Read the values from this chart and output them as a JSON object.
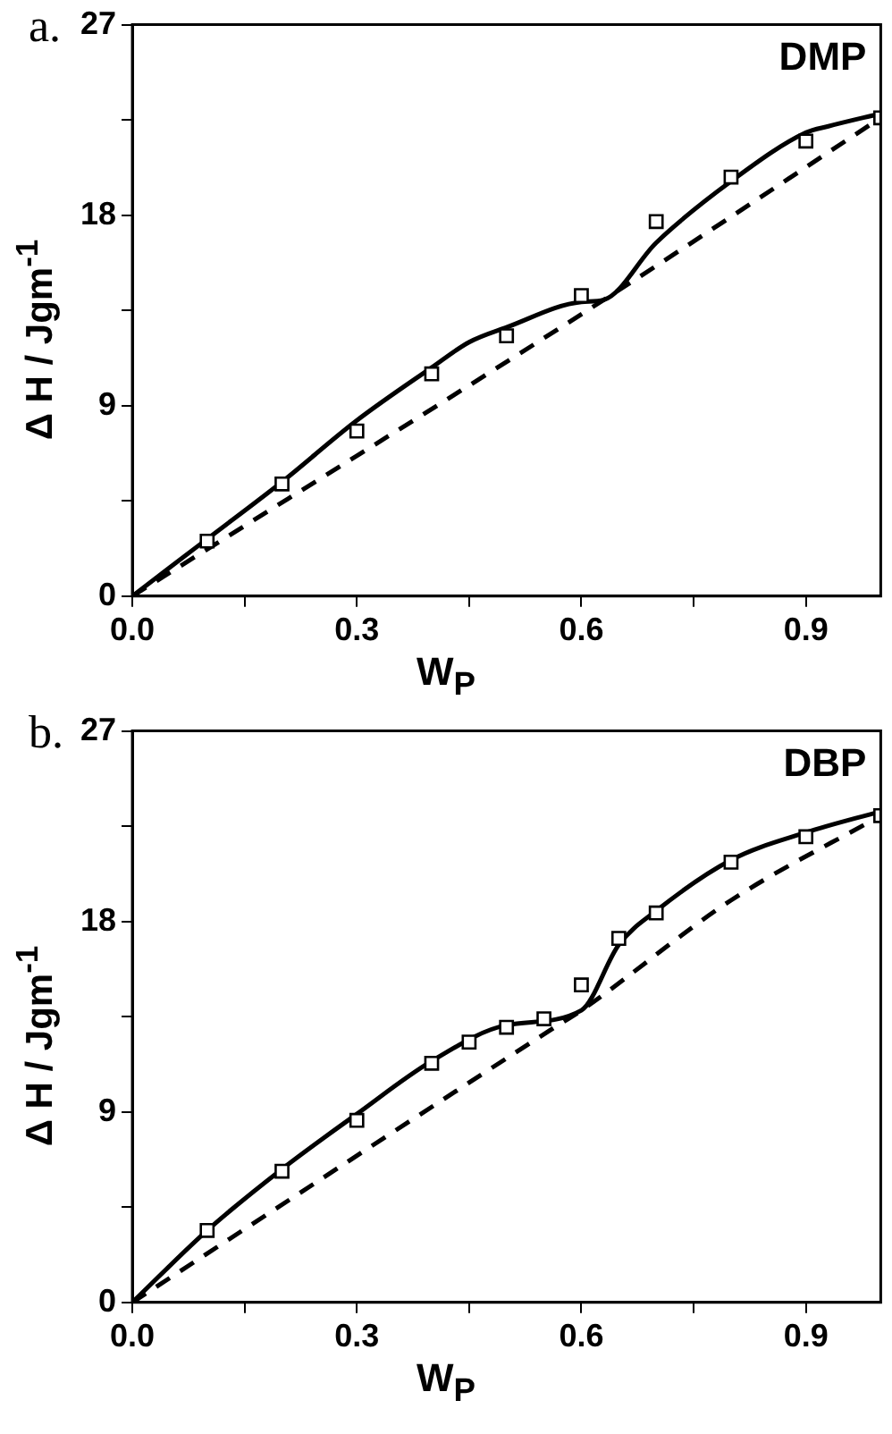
{
  "chart_data": [
    {
      "type": "scatter",
      "xlabel": "W$_{P}$",
      "ylabel": "Δ H / Jgm$^{-1}$",
      "annotations": [
        "a.",
        "DMP"
      ],
      "legend": false,
      "grid": false,
      "xlim": [
        0,
        1.0
      ],
      "xticks": [
        {
          "value": 0,
          "label": "0.0"
        },
        {
          "value": 0.15,
          "label": null
        },
        0.3,
        {
          "value": 0.45,
          "label": null
        },
        0.6,
        {
          "value": 0.75,
          "label": null
        },
        0.9
      ],
      "ylim": [
        0,
        27
      ],
      "yticks": [
        0,
        {
          "value": 4.5,
          "label": null
        },
        9,
        {
          "value": 13.5,
          "label": null
        },
        18,
        {
          "value": 22.5,
          "label": null
        },
        27
      ],
      "series": [
        {
          "marker": "square",
          "color": "#000000",
          "x": [
            0.1,
            0.2,
            0.3,
            0.4,
            0.5,
            0.6,
            0.7,
            0.8,
            0.9,
            1.0
          ],
          "values": [
            2.6,
            5.3,
            7.8,
            10.5,
            12.3,
            14.2,
            17.7,
            19.8,
            21.5,
            22.6
          ]
        },
        {
          "type": "line",
          "line_style": "solid",
          "color": "#000000",
          "x": [
            0,
            0.1,
            0.2,
            0.3,
            0.4,
            0.45,
            0.5,
            0.6,
            0.63,
            0.7,
            0.8,
            0.9,
            0.93,
            1.0
          ],
          "values": [
            0,
            2.7,
            5.4,
            8.3,
            10.8,
            12.0,
            12.7,
            13.9,
            14.0,
            16.7,
            19.6,
            21.9,
            22.2,
            22.8
          ]
        },
        {
          "type": "line",
          "line_style": "dashed",
          "color": "#000000",
          "x": [
            0,
            0.63,
            1.0
          ],
          "values": [
            0,
            14.0,
            22.6
          ]
        }
      ]
    },
    {
      "type": "scatter",
      "xlabel": "W$_{P}$",
      "ylabel": "Δ H / Jgm$^{-1}$",
      "annotations": [
        "b.",
        "DBP"
      ],
      "legend": false,
      "grid": false,
      "xlim": [
        0,
        1.0
      ],
      "xticks": [
        {
          "value": 0,
          "label": "0.0"
        },
        {
          "value": 0.15,
          "label": null
        },
        0.3,
        {
          "value": 0.45,
          "label": null
        },
        0.6,
        {
          "value": 0.75,
          "label": null
        },
        0.9
      ],
      "ylim": [
        0,
        27
      ],
      "yticks": [
        0,
        {
          "value": 4.5,
          "label": null
        },
        9,
        {
          "value": 13.5,
          "label": null
        },
        18,
        {
          "value": 22.5,
          "label": null
        },
        27
      ],
      "series": [
        {
          "marker": "square",
          "color": "#000000",
          "x": [
            0.1,
            0.2,
            0.3,
            0.4,
            0.45,
            0.5,
            0.55,
            0.6,
            0.65,
            0.7,
            0.8,
            0.9,
            1.0
          ],
          "values": [
            3.4,
            6.2,
            8.6,
            11.3,
            12.3,
            13.0,
            13.4,
            15.0,
            17.2,
            18.4,
            20.8,
            22.0,
            23.0
          ]
        },
        {
          "type": "line",
          "line_style": "solid",
          "color": "#000000",
          "x": [
            0,
            0.1,
            0.2,
            0.3,
            0.4,
            0.5,
            0.6,
            0.65,
            0.7,
            0.8,
            0.9,
            1.0
          ],
          "values": [
            0,
            3.4,
            6.3,
            8.9,
            11.4,
            13.1,
            13.8,
            16.9,
            18.5,
            20.9,
            22.2,
            23.2
          ]
        },
        {
          "type": "line",
          "line_style": "dashed",
          "color": "#000000",
          "x": [
            0,
            0.56,
            0.6,
            0.8,
            1.0
          ],
          "values": [
            0,
            12.9,
            13.8,
            19.0,
            23.0
          ]
        }
      ]
    }
  ]
}
